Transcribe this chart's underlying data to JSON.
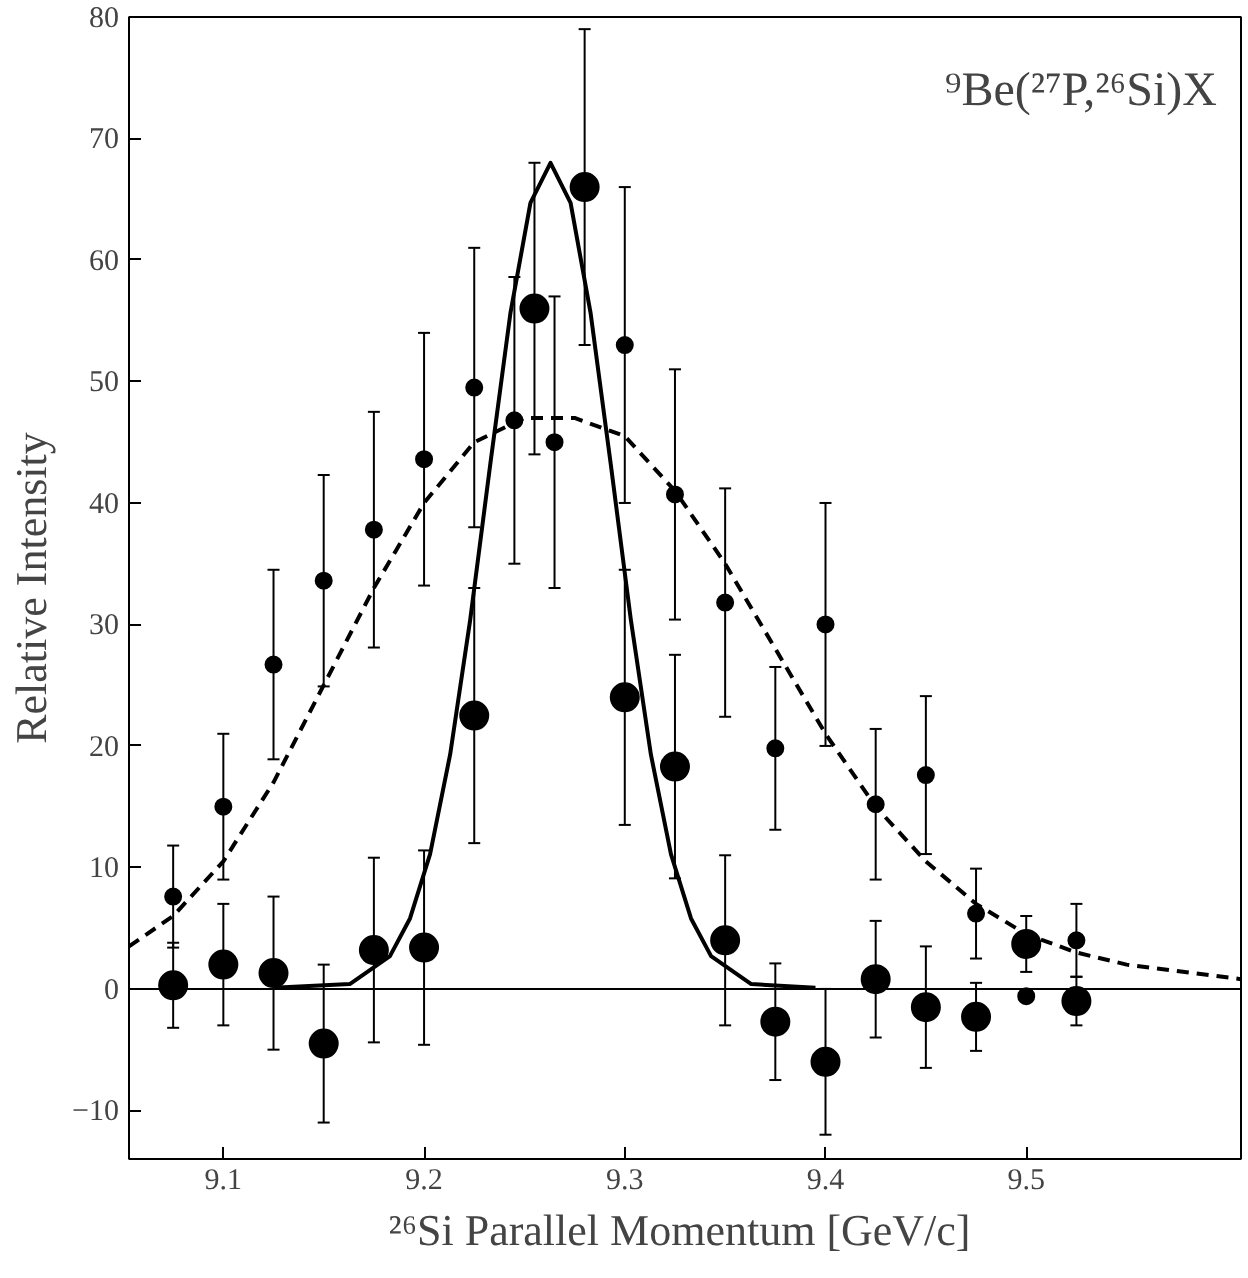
{
  "chart_data": {
    "type": "scatter",
    "xlabel": "²⁶Si Parallel Momentum  [GeV/c]",
    "ylabel": "Relative Intensity",
    "annotations": [
      "⁹Be(²⁷P,²⁶Si)X"
    ],
    "xlim": [
      9.053,
      9.607
    ],
    "ylim": [
      -14,
      80
    ],
    "xticks": [
      9.1,
      9.2,
      9.3,
      9.4,
      9.5
    ],
    "yticks": [
      -10,
      0,
      10,
      20,
      30,
      40,
      50,
      60,
      70,
      80
    ],
    "grid": false,
    "ref_lines": [
      {
        "axis": "y",
        "value": 0,
        "color": "#000000"
      }
    ],
    "series": [
      {
        "marker": "circle",
        "color": "#000000",
        "x": [
          9.075,
          9.1,
          9.125,
          9.15,
          9.175,
          9.2,
          9.225,
          9.255,
          9.28,
          9.3,
          9.325,
          9.35,
          9.375,
          9.4,
          9.425,
          9.45,
          9.475,
          9.5,
          9.525
        ],
        "values": [
          0.3,
          2,
          1.3,
          -4.5,
          3.2,
          3.4,
          22.5,
          56,
          66,
          24,
          18.3,
          4,
          -2.7,
          -6,
          0.8,
          -1.5,
          -2.3,
          3.7,
          -1
        ],
        "errors": [
          3.5,
          5,
          6.3,
          6.5,
          7.6,
          8,
          10.5,
          12,
          13,
          10.5,
          9.2,
          7,
          4.8,
          6,
          4.8,
          5,
          2.8,
          2.3,
          2
        ]
      },
      {
        "marker": "circle",
        "color": "#000000",
        "x": [
          9.075,
          9.1,
          9.125,
          9.15,
          9.175,
          9.2,
          9.225,
          9.245,
          9.265,
          9.3,
          9.325,
          9.35,
          9.375,
          9.4,
          9.425,
          9.45,
          9.475,
          9.5,
          9.525
        ],
        "values": [
          7.6,
          15,
          26.7,
          33.6,
          37.8,
          43.6,
          49.5,
          46.8,
          45,
          53,
          40.7,
          31.8,
          19.8,
          30,
          15.2,
          17.6,
          6.2,
          -0.6,
          4
        ],
        "errors": [
          4.2,
          6,
          7.8,
          8.7,
          9.7,
          10.4,
          11.5,
          11.8,
          12,
          13,
          10.3,
          9.4,
          6.7,
          10,
          6.2,
          6.5,
          3.7,
          null,
          3
        ]
      },
      {
        "type": "line",
        "marker": "none",
        "line_style": "solid",
        "color": "#000000",
        "x": [
          9.125,
          9.163,
          9.183,
          9.193,
          9.203,
          9.213,
          9.223,
          9.233,
          9.243,
          9.253,
          9.263,
          9.273,
          9.283,
          9.293,
          9.303,
          9.313,
          9.323,
          9.333,
          9.343,
          9.363,
          9.395
        ],
        "values": [
          0.1,
          0.4,
          2.7,
          5.8,
          11.1,
          19.3,
          30.4,
          43.2,
          55.6,
          64.7,
          68,
          64.7,
          55.6,
          43.2,
          30.4,
          19.3,
          11.1,
          5.8,
          2.7,
          0.4,
          0.1
        ]
      },
      {
        "type": "line",
        "marker": "none",
        "line_style": "dashed",
        "color": "#000000",
        "x": [
          9.053,
          9.075,
          9.1,
          9.125,
          9.15,
          9.175,
          9.2,
          9.225,
          9.25,
          9.275,
          9.3,
          9.325,
          9.35,
          9.375,
          9.4,
          9.425,
          9.45,
          9.475,
          9.5,
          9.525,
          9.55,
          9.607
        ],
        "values": [
          3.5,
          6,
          10.5,
          17,
          25,
          33,
          40,
          45,
          47,
          47,
          45.5,
          41,
          35,
          28,
          21,
          15,
          10.5,
          7,
          4.5,
          3,
          2,
          0.8
        ]
      }
    ]
  }
}
